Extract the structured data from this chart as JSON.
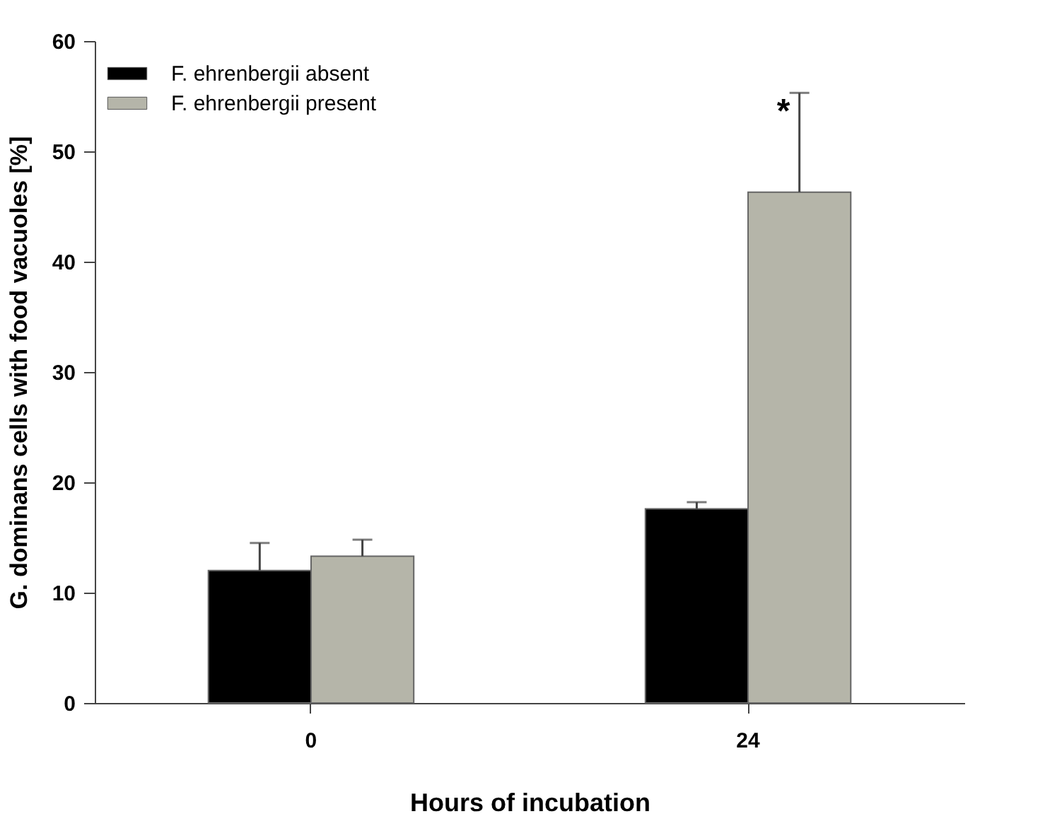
{
  "chart_data": {
    "type": "bar",
    "xlabel": "Hours of incubation",
    "ylabel": "G. dominans cells with food vacuoles [%]",
    "categories": [
      "0",
      "24"
    ],
    "series": [
      {
        "name": "F. ehrenbergii absent",
        "color": "#000000",
        "values": [
          12.0,
          17.6
        ],
        "errors": [
          2.5,
          0.6
        ]
      },
      {
        "name": "F. ehrenbergii present",
        "color": "#b5b5a9",
        "values": [
          13.3,
          46.3
        ],
        "errors": [
          1.5,
          9.0
        ]
      }
    ],
    "ylim": [
      0,
      60
    ],
    "yticks": [
      0,
      10,
      20,
      30,
      40,
      50,
      60
    ],
    "annotations": [
      "*"
    ],
    "legend": "top left",
    "grid": false
  }
}
